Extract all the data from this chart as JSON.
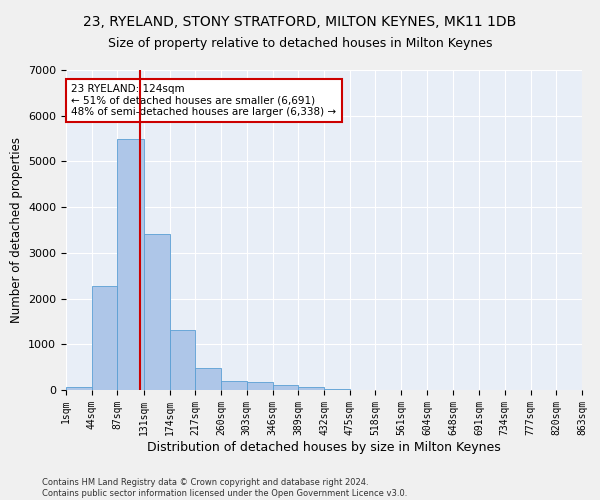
{
  "title": "23, RYELAND, STONY STRATFORD, MILTON KEYNES, MK11 1DB",
  "subtitle": "Size of property relative to detached houses in Milton Keynes",
  "xlabel": "Distribution of detached houses by size in Milton Keynes",
  "ylabel": "Number of detached properties",
  "footnote": "Contains HM Land Registry data © Crown copyright and database right 2024.\nContains public sector information licensed under the Open Government Licence v3.0.",
  "bar_values": [
    70,
    2280,
    5500,
    3420,
    1310,
    490,
    200,
    170,
    100,
    60,
    30,
    10,
    5,
    3,
    2,
    1,
    1,
    1,
    0,
    0
  ],
  "bin_edges": [
    1,
    44,
    87,
    131,
    174,
    217,
    260,
    303,
    346,
    389,
    432,
    475,
    518,
    561,
    604,
    648,
    691,
    734,
    777,
    820,
    863
  ],
  "bar_color": "#aec6e8",
  "bar_edge_color": "#5a9fd4",
  "vline_x": 124,
  "vline_color": "#cc0000",
  "annotation_text": "23 RYELAND: 124sqm\n← 51% of detached houses are smaller (6,691)\n48% of semi-detached houses are larger (6,338) →",
  "annotation_box_color": "#ffffff",
  "annotation_box_edge": "#cc0000",
  "ylim": [
    0,
    7000
  ],
  "background_color": "#e8eef7",
  "grid_color": "#ffffff",
  "title_fontsize": 10,
  "subtitle_fontsize": 9,
  "xlabel_fontsize": 9,
  "ylabel_fontsize": 8.5,
  "tick_fontsize": 7,
  "footnote_fontsize": 6,
  "annotation_fontsize": 7.5
}
